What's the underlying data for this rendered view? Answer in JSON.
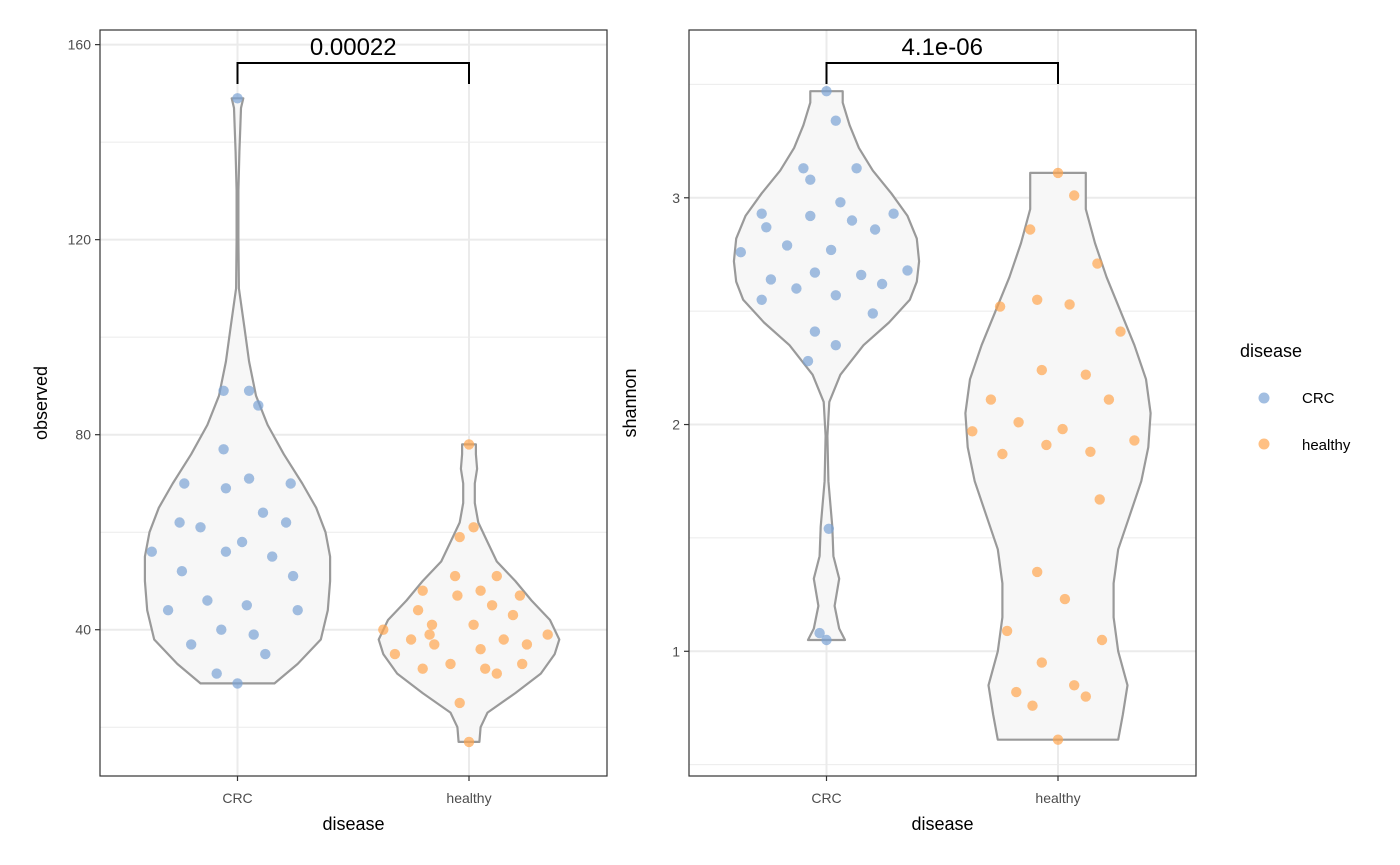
{
  "chart_data": [
    {
      "type": "violin",
      "title": "",
      "xlabel": "disease",
      "ylabel": "observed",
      "categories": [
        "CRC",
        "healthy"
      ],
      "ylim": [
        10,
        163
      ],
      "yticks": [
        40,
        80,
        120,
        160
      ],
      "grid": true,
      "comparison": {
        "groups": [
          "CRC",
          "healthy"
        ],
        "p_value": "0.00022"
      },
      "series": [
        {
          "name": "CRC",
          "values": [
            149,
            89,
            89,
            86,
            77,
            71,
            70,
            70,
            69,
            64,
            62,
            62,
            61,
            58,
            56,
            56,
            55,
            52,
            51,
            46,
            45,
            44,
            44,
            40,
            39,
            37,
            35,
            31,
            29
          ],
          "jitter": [
            0.0,
            -0.06,
            0.05,
            0.09,
            -0.06,
            0.05,
            -0.23,
            0.23,
            -0.05,
            0.11,
            -0.25,
            0.21,
            -0.16,
            0.02,
            -0.37,
            -0.05,
            0.15,
            -0.24,
            0.24,
            -0.13,
            0.04,
            -0.3,
            0.26,
            -0.07,
            0.07,
            -0.2,
            0.12,
            -0.09,
            0.0
          ],
          "violin": [
            {
              "y": 29,
              "w": 0.16
            },
            {
              "y": 33,
              "w": 0.26
            },
            {
              "y": 38,
              "w": 0.36
            },
            {
              "y": 44,
              "w": 0.39
            },
            {
              "y": 50,
              "w": 0.4
            },
            {
              "y": 55,
              "w": 0.4
            },
            {
              "y": 60,
              "w": 0.38
            },
            {
              "y": 65,
              "w": 0.34
            },
            {
              "y": 70,
              "w": 0.28
            },
            {
              "y": 76,
              "w": 0.2
            },
            {
              "y": 82,
              "w": 0.13
            },
            {
              "y": 88,
              "w": 0.08
            },
            {
              "y": 95,
              "w": 0.05
            },
            {
              "y": 102,
              "w": 0.03
            },
            {
              "y": 110,
              "w": 0.006
            },
            {
              "y": 120,
              "w": 0.004
            },
            {
              "y": 130,
              "w": 0.004
            },
            {
              "y": 138,
              "w": 0.008
            },
            {
              "y": 143,
              "w": 0.012
            },
            {
              "y": 147,
              "w": 0.015
            },
            {
              "y": 149,
              "w": 0.025
            }
          ]
        },
        {
          "name": "healthy",
          "values": [
            78,
            61,
            59,
            51,
            51,
            48,
            48,
            47,
            47,
            45,
            44,
            43,
            41,
            41,
            40,
            39,
            39,
            38,
            38,
            37,
            37,
            36,
            35,
            33,
            33,
            32,
            32,
            31,
            25,
            17
          ],
          "jitter": [
            0.0,
            0.02,
            -0.04,
            -0.06,
            0.12,
            -0.2,
            0.05,
            -0.05,
            0.22,
            0.1,
            -0.22,
            0.19,
            -0.16,
            0.02,
            -0.37,
            -0.17,
            0.34,
            -0.25,
            0.15,
            -0.15,
            0.25,
            0.05,
            -0.32,
            -0.08,
            0.23,
            -0.2,
            0.07,
            0.12,
            -0.04,
            0.0
          ],
          "violin": [
            {
              "y": 17,
              "w": 0.045
            },
            {
              "y": 20,
              "w": 0.05
            },
            {
              "y": 23,
              "w": 0.08
            },
            {
              "y": 27,
              "w": 0.2
            },
            {
              "y": 31,
              "w": 0.31
            },
            {
              "y": 35,
              "w": 0.37
            },
            {
              "y": 38,
              "w": 0.39
            },
            {
              "y": 42,
              "w": 0.35
            },
            {
              "y": 46,
              "w": 0.27
            },
            {
              "y": 50,
              "w": 0.2
            },
            {
              "y": 54,
              "w": 0.12
            },
            {
              "y": 58,
              "w": 0.08
            },
            {
              "y": 62,
              "w": 0.04
            },
            {
              "y": 66,
              "w": 0.025
            },
            {
              "y": 70,
              "w": 0.025
            },
            {
              "y": 73,
              "w": 0.035
            },
            {
              "y": 76,
              "w": 0.03
            },
            {
              "y": 78,
              "w": 0.03
            }
          ]
        }
      ]
    },
    {
      "type": "violin",
      "title": "",
      "xlabel": "disease",
      "ylabel": "shannon",
      "categories": [
        "CRC",
        "healthy"
      ],
      "ylim": [
        0.45,
        3.74
      ],
      "yticks": [
        1,
        2,
        3
      ],
      "grid": true,
      "comparison": {
        "groups": [
          "CRC",
          "healthy"
        ],
        "p_value": "4.1e-06"
      },
      "series": [
        {
          "name": "CRC",
          "values": [
            3.47,
            3.34,
            3.13,
            3.13,
            3.08,
            2.98,
            2.93,
            2.92,
            2.93,
            2.9,
            2.87,
            2.86,
            2.79,
            2.77,
            2.76,
            2.68,
            2.67,
            2.66,
            2.64,
            2.62,
            2.6,
            2.57,
            2.55,
            2.49,
            2.41,
            2.35,
            2.28,
            1.54,
            1.08,
            1.05
          ],
          "jitter": [
            0.0,
            0.04,
            -0.1,
            0.13,
            -0.07,
            0.06,
            -0.28,
            -0.07,
            0.29,
            0.11,
            -0.26,
            0.21,
            -0.17,
            0.02,
            -0.37,
            0.35,
            -0.05,
            0.15,
            -0.24,
            0.24,
            -0.13,
            0.04,
            -0.28,
            0.2,
            -0.05,
            0.04,
            -0.08,
            0.01,
            -0.03,
            0.0
          ],
          "violin": [
            {
              "y": 1.05,
              "w": 0.08
            },
            {
              "y": 1.1,
              "w": 0.055
            },
            {
              "y": 1.2,
              "w": 0.035
            },
            {
              "y": 1.32,
              "w": 0.055
            },
            {
              "y": 1.42,
              "w": 0.03
            },
            {
              "y": 1.55,
              "w": 0.025
            },
            {
              "y": 1.75,
              "w": 0.008
            },
            {
              "y": 1.95,
              "w": 0.004
            },
            {
              "y": 2.1,
              "w": 0.012
            },
            {
              "y": 2.22,
              "w": 0.06
            },
            {
              "y": 2.35,
              "w": 0.16
            },
            {
              "y": 2.45,
              "w": 0.27
            },
            {
              "y": 2.55,
              "w": 0.36
            },
            {
              "y": 2.63,
              "w": 0.39
            },
            {
              "y": 2.72,
              "w": 0.4
            },
            {
              "y": 2.82,
              "w": 0.39
            },
            {
              "y": 2.92,
              "w": 0.35
            },
            {
              "y": 3.02,
              "w": 0.28
            },
            {
              "y": 3.12,
              "w": 0.2
            },
            {
              "y": 3.22,
              "w": 0.14
            },
            {
              "y": 3.32,
              "w": 0.1
            },
            {
              "y": 3.42,
              "w": 0.07
            },
            {
              "y": 3.47,
              "w": 0.07
            }
          ]
        },
        {
          "name": "healthy",
          "values": [
            3.11,
            3.01,
            2.86,
            2.71,
            2.55,
            2.53,
            2.52,
            2.41,
            2.24,
            2.22,
            2.11,
            2.11,
            2.01,
            1.98,
            1.97,
            1.93,
            1.91,
            1.88,
            1.87,
            1.67,
            1.35,
            1.23,
            1.09,
            1.05,
            0.95,
            0.85,
            0.82,
            0.8,
            0.76,
            0.61
          ],
          "jitter": [
            0.0,
            0.07,
            -0.12,
            0.17,
            -0.09,
            0.05,
            -0.25,
            0.27,
            -0.07,
            0.12,
            -0.29,
            0.22,
            -0.17,
            0.02,
            -0.37,
            0.33,
            -0.05,
            0.14,
            -0.24,
            0.18,
            -0.09,
            0.03,
            -0.22,
            0.19,
            -0.07,
            0.07,
            -0.18,
            0.12,
            -0.11,
            0.0
          ],
          "violin": [
            {
              "y": 0.61,
              "w": 0.26
            },
            {
              "y": 0.72,
              "w": 0.28
            },
            {
              "y": 0.85,
              "w": 0.3
            },
            {
              "y": 1.0,
              "w": 0.26
            },
            {
              "y": 1.15,
              "w": 0.24
            },
            {
              "y": 1.3,
              "w": 0.24
            },
            {
              "y": 1.45,
              "w": 0.26
            },
            {
              "y": 1.6,
              "w": 0.31
            },
            {
              "y": 1.75,
              "w": 0.36
            },
            {
              "y": 1.9,
              "w": 0.39
            },
            {
              "y": 2.05,
              "w": 0.4
            },
            {
              "y": 2.2,
              "w": 0.38
            },
            {
              "y": 2.35,
              "w": 0.33
            },
            {
              "y": 2.5,
              "w": 0.27
            },
            {
              "y": 2.65,
              "w": 0.21
            },
            {
              "y": 2.8,
              "w": 0.16
            },
            {
              "y": 2.95,
              "w": 0.12
            },
            {
              "y": 3.11,
              "w": 0.12
            }
          ]
        }
      ]
    }
  ],
  "legend": {
    "title": "disease",
    "position": "right",
    "items": [
      {
        "label": "CRC",
        "color": "#7ba3d4"
      },
      {
        "label": "healthy",
        "color": "#ffa54f"
      }
    ]
  },
  "colors": {
    "CRC": "#7ba3d4",
    "healthy": "#ffa54f",
    "violin_fill": "#f7f7f7",
    "violin_stroke": "#9a9a9a",
    "grid": "#ebebeb",
    "panel_border": "#333333"
  }
}
